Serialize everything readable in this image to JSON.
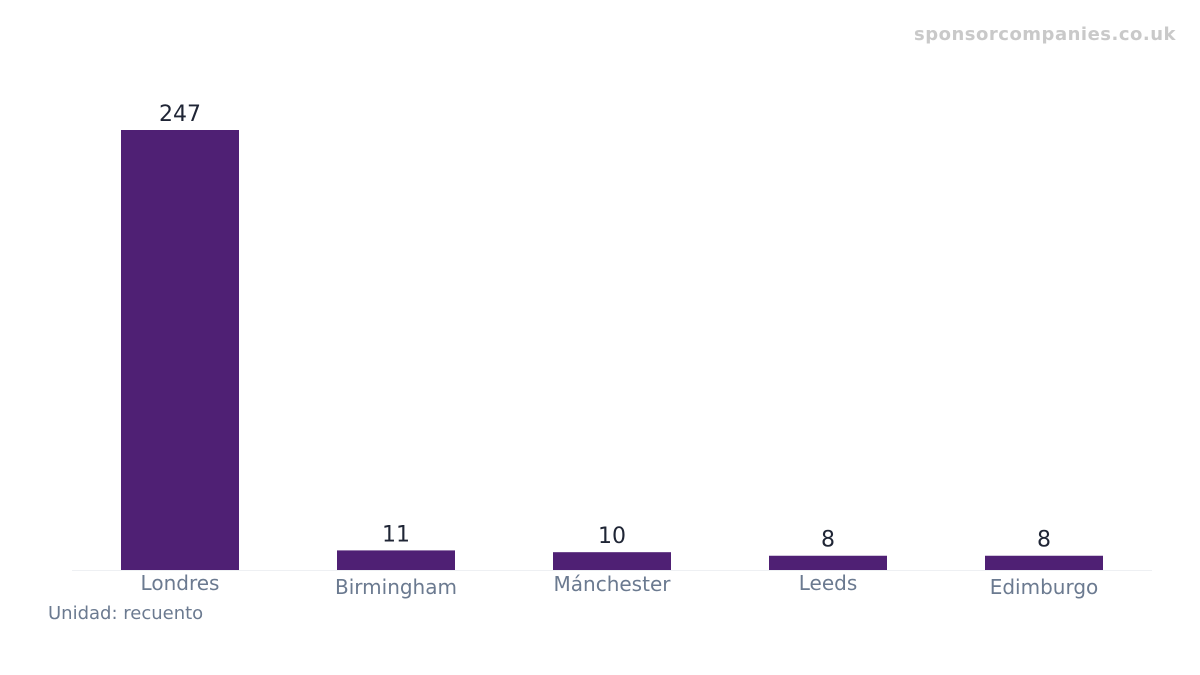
{
  "watermark": "sponsorcompanies.co.uk",
  "unit_note": "Unidad: recuento",
  "colors": {
    "bar": "#4f2074",
    "value_label": "#1f2535",
    "category_label": "#6b7a90",
    "baseline": "#eef0f3",
    "watermark": "#c9c9c9"
  },
  "chart_data": {
    "type": "bar",
    "categories": [
      "Londres",
      "Birmingham",
      "Mánchester",
      "Leeds",
      "Edimburgo"
    ],
    "values": [
      247,
      11,
      10,
      8,
      8
    ],
    "ylim": [
      0,
      247
    ],
    "grid": false,
    "data_labels": true
  }
}
